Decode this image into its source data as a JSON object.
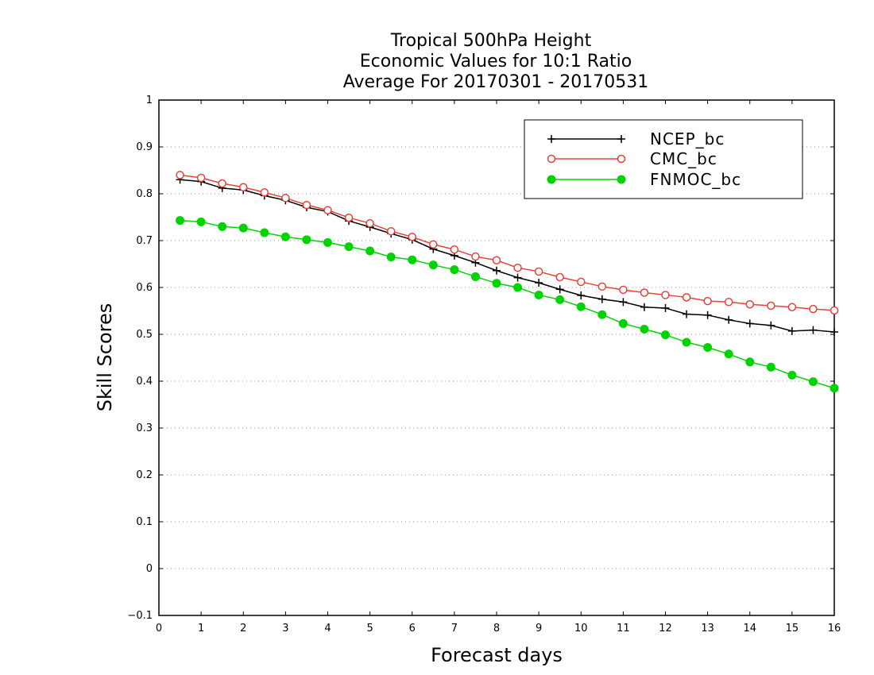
{
  "chart_data": {
    "type": "line",
    "title": [
      "Tropical 500hPa Height",
      "Economic Values for 10:1 Ratio",
      "Average For 20170301 - 20170531"
    ],
    "xlabel": "Forecast days",
    "ylabel": "Skill Scores",
    "xlim": [
      0,
      16
    ],
    "ylim": [
      -0.1,
      1
    ],
    "xticks": [
      "0",
      "1",
      "2",
      "3",
      "4",
      "5",
      "6",
      "7",
      "8",
      "9",
      "10",
      "11",
      "12",
      "13",
      "14",
      "15",
      "16"
    ],
    "yticks": [
      "−0.1",
      "0",
      "0.1",
      "0.2",
      "0.3",
      "0.4",
      "0.5",
      "0.6",
      "0.7",
      "0.8",
      "0.9",
      "1"
    ],
    "grid": true,
    "legend_position": "top-right",
    "x": [
      0.5,
      1,
      1.5,
      2,
      2.5,
      3,
      3.5,
      4,
      4.5,
      5,
      5.5,
      6,
      6.5,
      7,
      7.5,
      8,
      8.5,
      9,
      9.5,
      10,
      10.5,
      11,
      11.5,
      12,
      12.5,
      13,
      13.5,
      14,
      14.5,
      15,
      15.5,
      16
    ],
    "series": [
      {
        "name": "NCEP_bc",
        "color": "#000000",
        "marker": "plus",
        "values": [
          0.83,
          0.826,
          0.812,
          0.808,
          0.796,
          0.786,
          0.771,
          0.762,
          0.742,
          0.729,
          0.715,
          0.702,
          0.682,
          0.668,
          0.653,
          0.636,
          0.621,
          0.61,
          0.596,
          0.583,
          0.575,
          0.569,
          0.558,
          0.556,
          0.543,
          0.541,
          0.531,
          0.523,
          0.519,
          0.507,
          0.509,
          0.505
        ]
      },
      {
        "name": "CMC_bc",
        "color": "#e8413a",
        "marker": "open-circle",
        "values": [
          0.84,
          0.834,
          0.822,
          0.814,
          0.803,
          0.791,
          0.776,
          0.765,
          0.749,
          0.737,
          0.72,
          0.708,
          0.692,
          0.681,
          0.666,
          0.658,
          0.642,
          0.634,
          0.622,
          0.612,
          0.602,
          0.595,
          0.589,
          0.584,
          0.579,
          0.571,
          0.569,
          0.564,
          0.561,
          0.558,
          0.554,
          0.551
        ]
      },
      {
        "name": "FNMOC_bc",
        "color": "#00d400",
        "marker": "filled-circle",
        "values": [
          0.743,
          0.74,
          0.73,
          0.727,
          0.717,
          0.708,
          0.702,
          0.696,
          0.687,
          0.678,
          0.665,
          0.659,
          0.648,
          0.638,
          0.623,
          0.609,
          0.6,
          0.584,
          0.574,
          0.559,
          0.542,
          0.523,
          0.511,
          0.499,
          0.483,
          0.472,
          0.458,
          0.441,
          0.43,
          0.413,
          0.399,
          0.385
        ]
      }
    ]
  }
}
